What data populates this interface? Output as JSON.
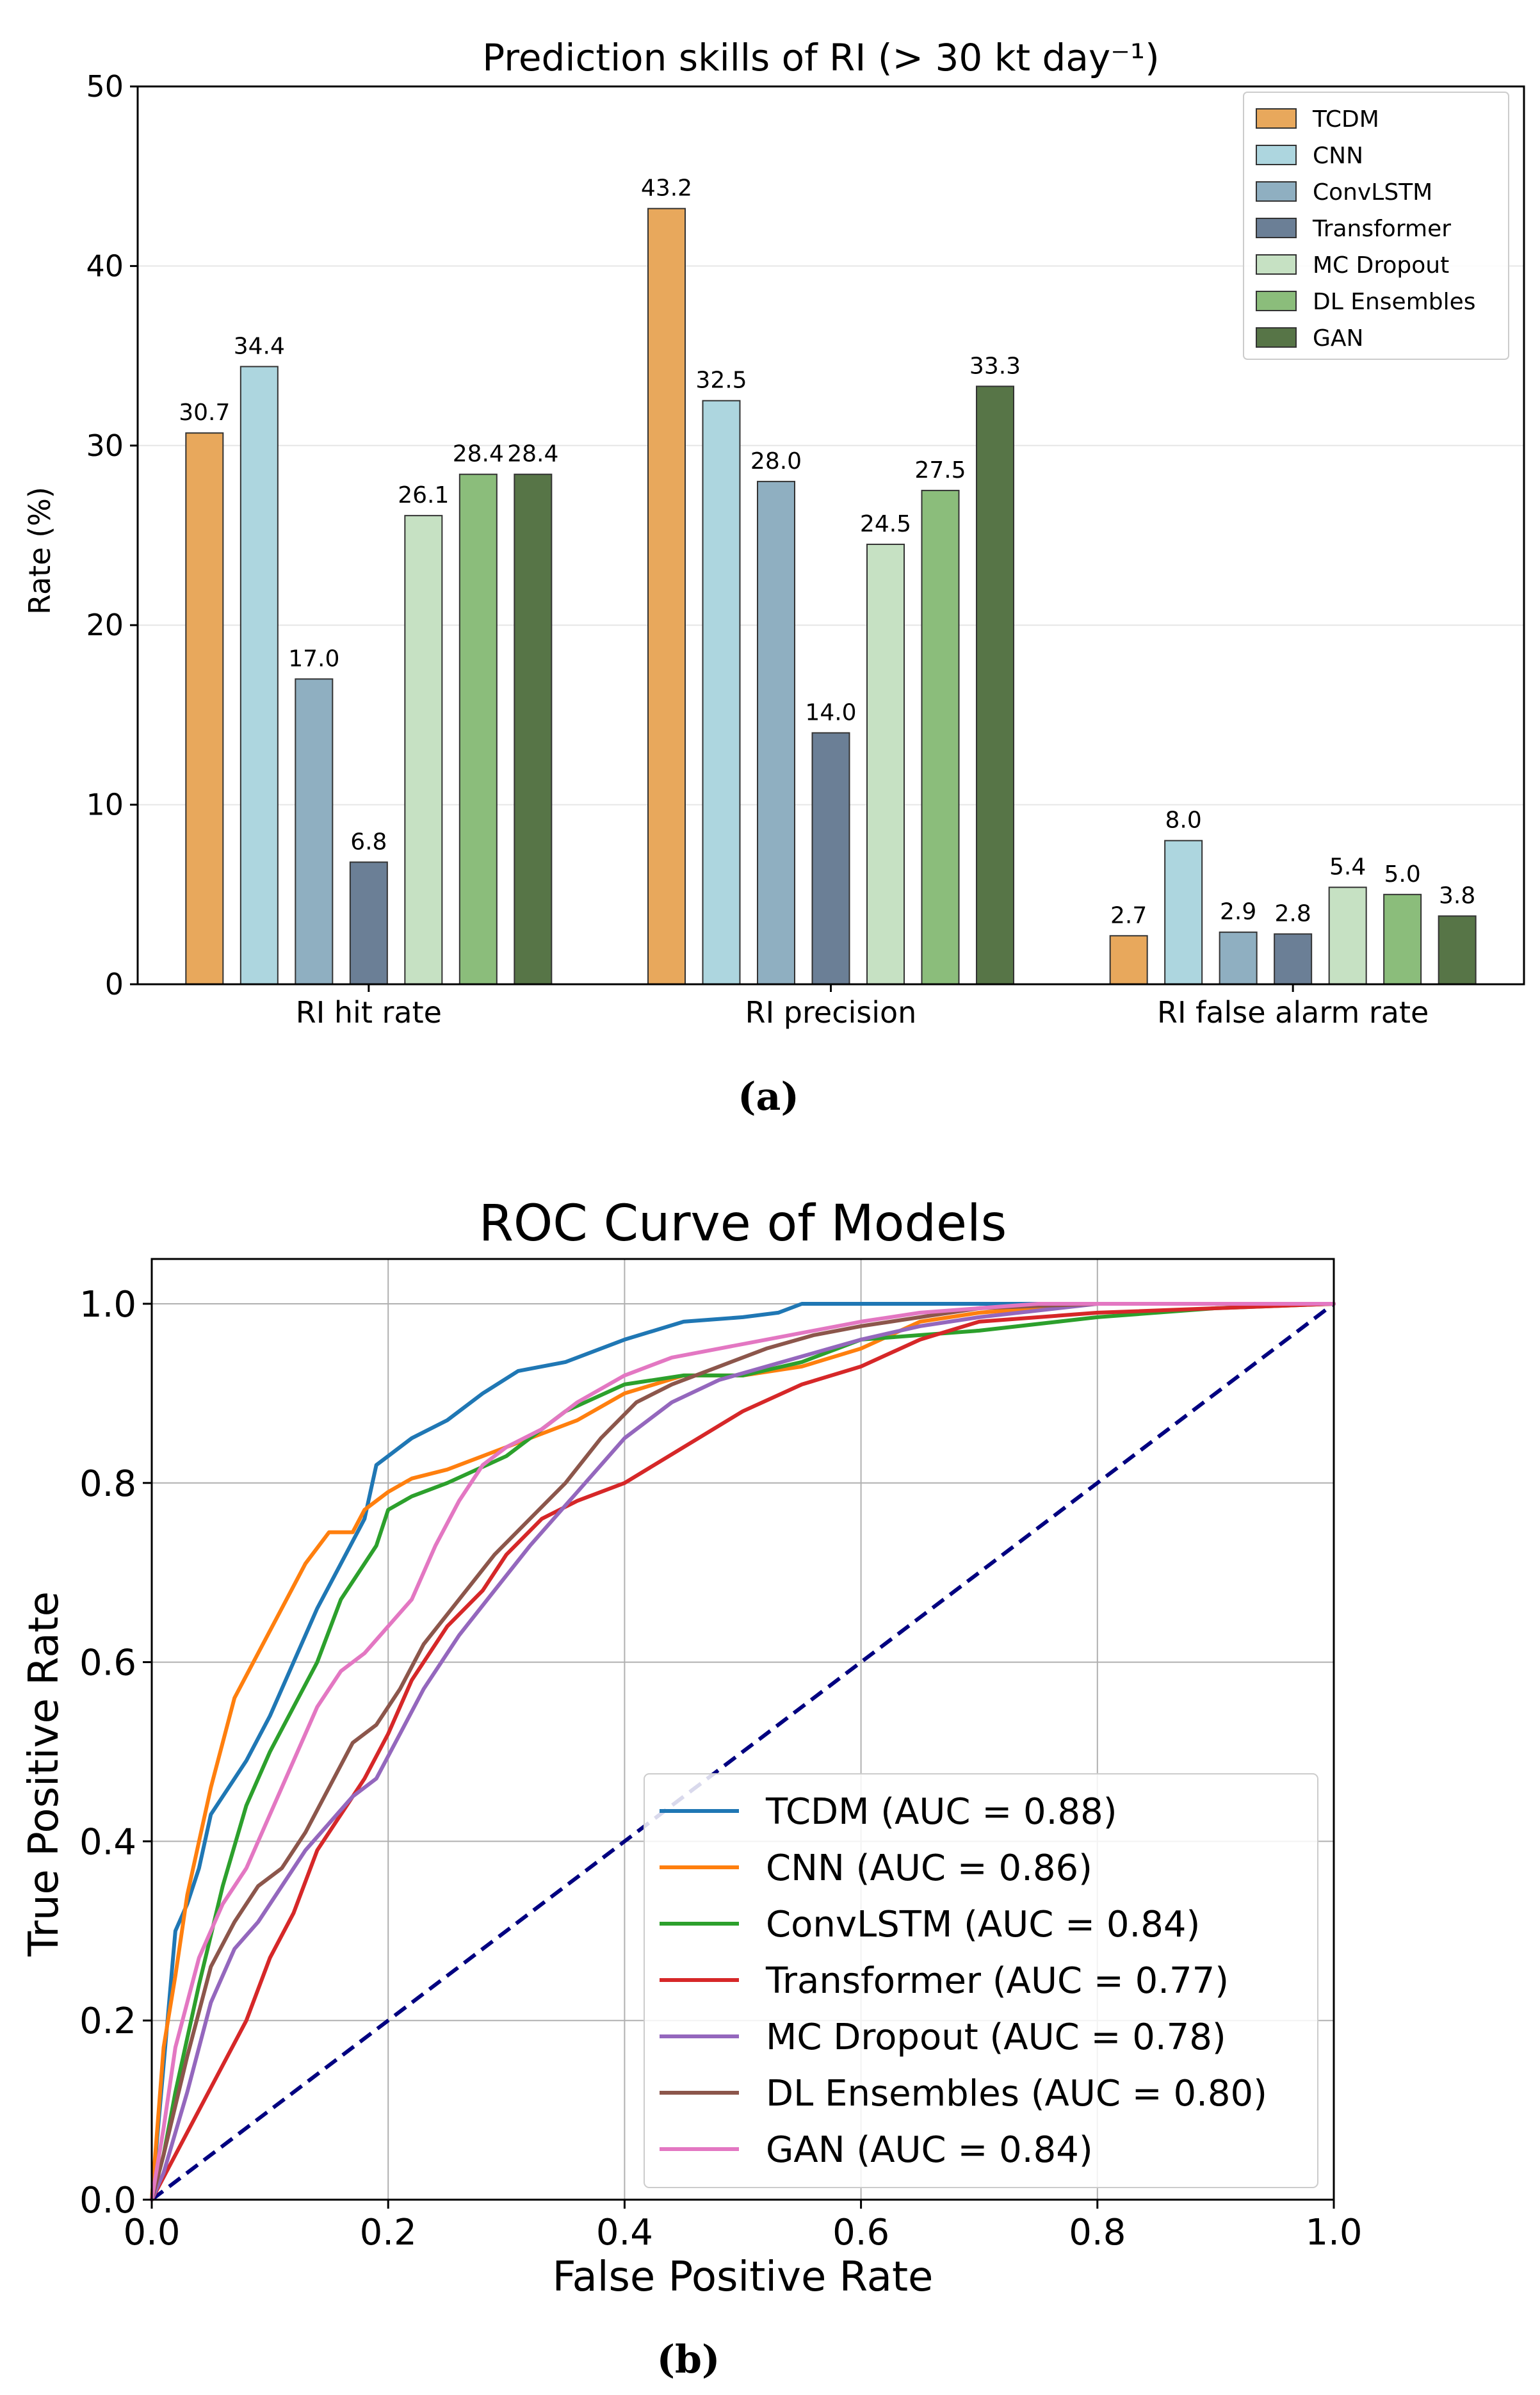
{
  "panel_labels": {
    "a": "(a)",
    "b": "(b)"
  },
  "colors": {
    "TCDM": "#e8a85c",
    "CNN": "#add6df",
    "ConvLSTM": "#8fafc1",
    "Transformer": "#6b7f96",
    "MC Dropout": "#c6e1c3",
    "DL Ensembles": "#8bbd7b",
    "GAN": "#577547",
    "roc_TCDM": "#1f77b4",
    "roc_CNN": "#ff7f0e",
    "roc_ConvLSTM": "#2ca02c",
    "roc_Transformer": "#d62728",
    "roc_MC Dropout": "#9467bd",
    "roc_DL Ensembles": "#8c564b",
    "roc_GAN": "#e377c2",
    "diagonal": "#000080"
  },
  "chart_data": [
    {
      "type": "bar",
      "title": "Prediction skills of RI (> 30 kt day⁻¹)",
      "xlabel": "",
      "ylabel": "Rate (%)",
      "ylim": [
        0,
        50
      ],
      "yticks": [
        0,
        10,
        20,
        30,
        40,
        50
      ],
      "grid": "horizontal",
      "legend_position": "top-right",
      "categories": [
        "RI hit rate",
        "RI precision",
        "RI false alarm rate"
      ],
      "series": [
        {
          "name": "TCDM",
          "values": [
            30.7,
            43.2,
            2.7
          ]
        },
        {
          "name": "CNN",
          "values": [
            34.4,
            32.5,
            8.0
          ]
        },
        {
          "name": "ConvLSTM",
          "values": [
            17.0,
            28.0,
            2.9
          ]
        },
        {
          "name": "Transformer",
          "values": [
            6.8,
            14.0,
            2.8
          ]
        },
        {
          "name": "MC Dropout",
          "values": [
            26.1,
            24.5,
            5.4
          ]
        },
        {
          "name": "DL Ensembles",
          "values": [
            28.4,
            27.5,
            5.0
          ]
        },
        {
          "name": "GAN",
          "values": [
            28.4,
            33.3,
            3.8
          ]
        }
      ]
    },
    {
      "type": "line",
      "title": "ROC Curve of Models",
      "xlabel": "False Positive Rate",
      "ylabel": "True Positive Rate",
      "xlim": [
        0,
        1
      ],
      "ylim": [
        0,
        1.05
      ],
      "xticks": [
        0.0,
        0.2,
        0.4,
        0.6,
        0.8,
        1.0
      ],
      "yticks": [
        0.0,
        0.2,
        0.4,
        0.6,
        0.8,
        1.0
      ],
      "grid": true,
      "legend_position": "lower-right",
      "diagonal": {
        "x": [
          0,
          1
        ],
        "y": [
          0,
          1
        ]
      },
      "series": [
        {
          "name": "TCDM",
          "label": "TCDM (AUC = 0.88)",
          "x": [
            0,
            0.01,
            0.02,
            0.03,
            0.04,
            0.05,
            0.06,
            0.08,
            0.1,
            0.12,
            0.14,
            0.16,
            0.18,
            0.19,
            0.2,
            0.22,
            0.25,
            0.28,
            0.31,
            0.35,
            0.4,
            0.45,
            0.5,
            0.53,
            0.55,
            0.6,
            0.7,
            1.0
          ],
          "y": [
            0,
            0.15,
            0.3,
            0.33,
            0.37,
            0.43,
            0.45,
            0.49,
            0.54,
            0.6,
            0.66,
            0.71,
            0.76,
            0.82,
            0.83,
            0.85,
            0.87,
            0.9,
            0.925,
            0.935,
            0.96,
            0.98,
            0.985,
            0.99,
            1.0,
            1.0,
            1.0,
            1.0
          ]
        },
        {
          "name": "CNN",
          "label": "CNN (AUC = 0.86)",
          "x": [
            0,
            0.01,
            0.02,
            0.03,
            0.05,
            0.07,
            0.09,
            0.11,
            0.13,
            0.15,
            0.17,
            0.18,
            0.2,
            0.22,
            0.25,
            0.28,
            0.32,
            0.36,
            0.4,
            0.45,
            0.5,
            0.55,
            0.6,
            0.65,
            0.7,
            0.8,
            1.0
          ],
          "y": [
            0,
            0.17,
            0.25,
            0.34,
            0.46,
            0.56,
            0.61,
            0.66,
            0.71,
            0.745,
            0.745,
            0.77,
            0.79,
            0.805,
            0.815,
            0.83,
            0.85,
            0.87,
            0.9,
            0.92,
            0.92,
            0.93,
            0.95,
            0.98,
            0.99,
            1.0,
            1.0
          ]
        },
        {
          "name": "ConvLSTM",
          "label": "ConvLSTM (AUC = 0.84)",
          "x": [
            0,
            0.01,
            0.02,
            0.04,
            0.06,
            0.08,
            0.1,
            0.12,
            0.14,
            0.16,
            0.18,
            0.19,
            0.2,
            0.22,
            0.25,
            0.3,
            0.35,
            0.4,
            0.45,
            0.5,
            0.55,
            0.6,
            0.7,
            0.8,
            0.9,
            1.0
          ],
          "y": [
            0,
            0.05,
            0.12,
            0.24,
            0.35,
            0.44,
            0.5,
            0.55,
            0.6,
            0.67,
            0.71,
            0.73,
            0.77,
            0.785,
            0.8,
            0.83,
            0.88,
            0.91,
            0.92,
            0.92,
            0.935,
            0.96,
            0.97,
            0.985,
            0.995,
            1.0
          ]
        },
        {
          "name": "Transformer",
          "label": "Transformer (AUC = 0.77)",
          "x": [
            0,
            0.02,
            0.04,
            0.06,
            0.08,
            0.1,
            0.12,
            0.14,
            0.16,
            0.18,
            0.2,
            0.22,
            0.25,
            0.28,
            0.3,
            0.33,
            0.36,
            0.4,
            0.45,
            0.5,
            0.55,
            0.6,
            0.65,
            0.7,
            0.8,
            1.0
          ],
          "y": [
            0,
            0.05,
            0.1,
            0.15,
            0.2,
            0.27,
            0.32,
            0.39,
            0.43,
            0.47,
            0.52,
            0.58,
            0.64,
            0.68,
            0.72,
            0.76,
            0.78,
            0.8,
            0.84,
            0.88,
            0.91,
            0.93,
            0.96,
            0.98,
            0.99,
            1.0
          ]
        },
        {
          "name": "MC Dropout",
          "label": "MC Dropout (AUC = 0.78)",
          "x": [
            0,
            0.01,
            0.03,
            0.05,
            0.07,
            0.09,
            0.11,
            0.13,
            0.15,
            0.17,
            0.19,
            0.21,
            0.23,
            0.26,
            0.29,
            0.32,
            0.36,
            0.4,
            0.44,
            0.48,
            0.52,
            0.56,
            0.6,
            0.65,
            0.7,
            0.8,
            1.0
          ],
          "y": [
            0,
            0.03,
            0.12,
            0.22,
            0.28,
            0.31,
            0.35,
            0.39,
            0.42,
            0.45,
            0.47,
            0.52,
            0.57,
            0.63,
            0.68,
            0.73,
            0.79,
            0.85,
            0.89,
            0.915,
            0.93,
            0.945,
            0.96,
            0.975,
            0.985,
            1.0,
            1.0
          ]
        },
        {
          "name": "DL Ensembles",
          "label": "DL Ensembles (AUC = 0.80)",
          "x": [
            0,
            0.01,
            0.03,
            0.05,
            0.07,
            0.09,
            0.11,
            0.13,
            0.15,
            0.17,
            0.19,
            0.21,
            0.23,
            0.26,
            0.29,
            0.32,
            0.35,
            0.38,
            0.41,
            0.44,
            0.48,
            0.52,
            0.56,
            0.6,
            0.65,
            0.7,
            0.8,
            1.0
          ],
          "y": [
            0,
            0.05,
            0.16,
            0.26,
            0.31,
            0.35,
            0.37,
            0.41,
            0.46,
            0.51,
            0.53,
            0.57,
            0.62,
            0.67,
            0.72,
            0.76,
            0.8,
            0.85,
            0.89,
            0.91,
            0.93,
            0.95,
            0.965,
            0.975,
            0.985,
            0.995,
            1.0,
            1.0
          ]
        },
        {
          "name": "GAN",
          "label": "GAN (AUC = 0.84)",
          "x": [
            0,
            0.01,
            0.02,
            0.04,
            0.06,
            0.08,
            0.1,
            0.12,
            0.14,
            0.16,
            0.18,
            0.2,
            0.22,
            0.24,
            0.26,
            0.28,
            0.3,
            0.33,
            0.36,
            0.4,
            0.44,
            0.48,
            0.52,
            0.56,
            0.6,
            0.65,
            0.7,
            0.75,
            0.8,
            1.0
          ],
          "y": [
            0,
            0.08,
            0.17,
            0.27,
            0.33,
            0.37,
            0.43,
            0.49,
            0.55,
            0.59,
            0.61,
            0.64,
            0.67,
            0.73,
            0.78,
            0.82,
            0.84,
            0.86,
            0.89,
            0.92,
            0.94,
            0.95,
            0.96,
            0.97,
            0.98,
            0.99,
            0.995,
            1.0,
            1.0,
            1.0
          ]
        }
      ]
    }
  ]
}
